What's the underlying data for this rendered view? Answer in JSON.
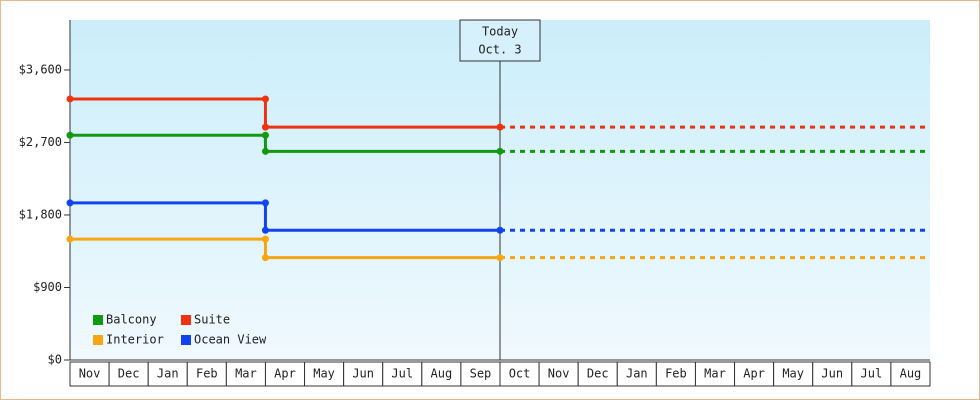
{
  "chart_data": {
    "type": "step",
    "categories": [
      "Nov",
      "Dec",
      "Jan",
      "Feb",
      "Mar",
      "Apr",
      "May",
      "Jun",
      "Jul",
      "Aug",
      "Sep",
      "Oct",
      "Nov",
      "Dec",
      "Jan",
      "Feb",
      "Mar",
      "Apr",
      "May",
      "Jun",
      "Jul",
      "Aug"
    ],
    "series": [
      {
        "name": "Balcony",
        "color": "#119911",
        "values": [
          2790,
          2790,
          2790,
          2790,
          2790,
          2590,
          2590,
          2590,
          2590,
          2590,
          2590,
          2590,
          null,
          null,
          null,
          null,
          null,
          null,
          null,
          null,
          null,
          null
        ]
      },
      {
        "name": "Suite",
        "color": "#ee3311",
        "values": [
          3240,
          3240,
          3240,
          3240,
          3240,
          2890,
          2890,
          2890,
          2890,
          2890,
          2890,
          2890,
          null,
          null,
          null,
          null,
          null,
          null,
          null,
          null,
          null,
          null
        ]
      },
      {
        "name": "Interior",
        "color": "#f5a611",
        "values": [
          1500,
          1500,
          1500,
          1500,
          1500,
          1270,
          1270,
          1270,
          1270,
          1270,
          1270,
          1270,
          null,
          null,
          null,
          null,
          null,
          null,
          null,
          null,
          null,
          null
        ]
      },
      {
        "name": "Ocean View",
        "color": "#1144ee",
        "values": [
          1950,
          1950,
          1950,
          1950,
          1950,
          1610,
          1610,
          1610,
          1610,
          1610,
          1610,
          1610,
          null,
          null,
          null,
          null,
          null,
          null,
          null,
          null,
          null,
          null
        ]
      }
    ],
    "annotation": {
      "label": "Today",
      "date": "Oct. 3"
    },
    "ylim": [
      0,
      4220
    ],
    "yticks": [
      {
        "value": 0,
        "label": "$0"
      },
      {
        "value": 900,
        "label": "$900"
      },
      {
        "value": 1800,
        "label": "$1,800"
      },
      {
        "value": 2700,
        "label": "$2,700"
      },
      {
        "value": 3600,
        "label": "$3,600"
      }
    ],
    "legend": "bottom-left"
  }
}
